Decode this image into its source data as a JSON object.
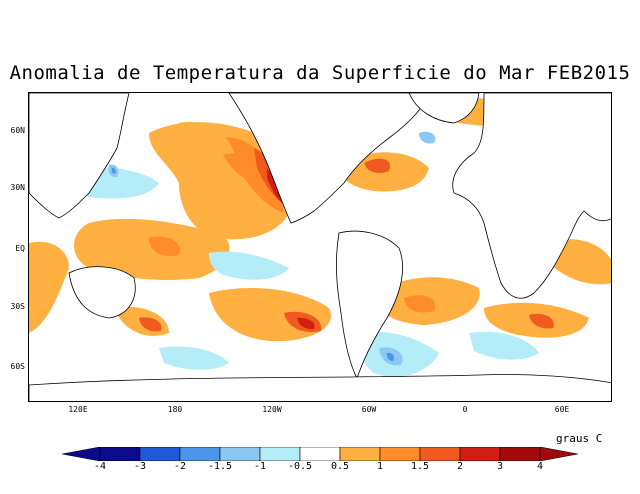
{
  "map": {
    "title": "Anomalia de Temperatura da Superficie do Mar FEB2015",
    "units_label": "graus C",
    "lat_labels": [
      "60N",
      "30N",
      "EQ",
      "30S",
      "60S"
    ],
    "lon_labels": [
      "120E",
      "180",
      "120W",
      "60W",
      "0",
      "60E"
    ]
  },
  "legend": {
    "ticks": [
      "-4",
      "-3",
      "-2",
      "-1.5",
      "-1",
      "-0.5",
      "0.5",
      "1",
      "1.5",
      "2",
      "3",
      "4"
    ],
    "bins": [
      {
        "color": "#0a0a8c"
      },
      {
        "color": "#1e5ad8"
      },
      {
        "color": "#4a96ec"
      },
      {
        "color": "#8cc8f4"
      },
      {
        "color": "#b4ecf8"
      },
      {
        "color": "#ffffff"
      },
      {
        "color": "#ffb040"
      },
      {
        "color": "#ff8c28"
      },
      {
        "color": "#f05a1e"
      },
      {
        "color": "#d21e12"
      },
      {
        "color": "#a00a0a"
      }
    ]
  },
  "colors": {
    "warm_light": "#ffb040",
    "warm_mid": "#ff8c28",
    "warm_strong": "#f05a1e",
    "warm_hot": "#d21e12",
    "cool_light": "#b4ecf8",
    "cool_mid": "#8cc8f4",
    "cool_strong": "#4a96ec",
    "land_outline": "#000000"
  }
}
